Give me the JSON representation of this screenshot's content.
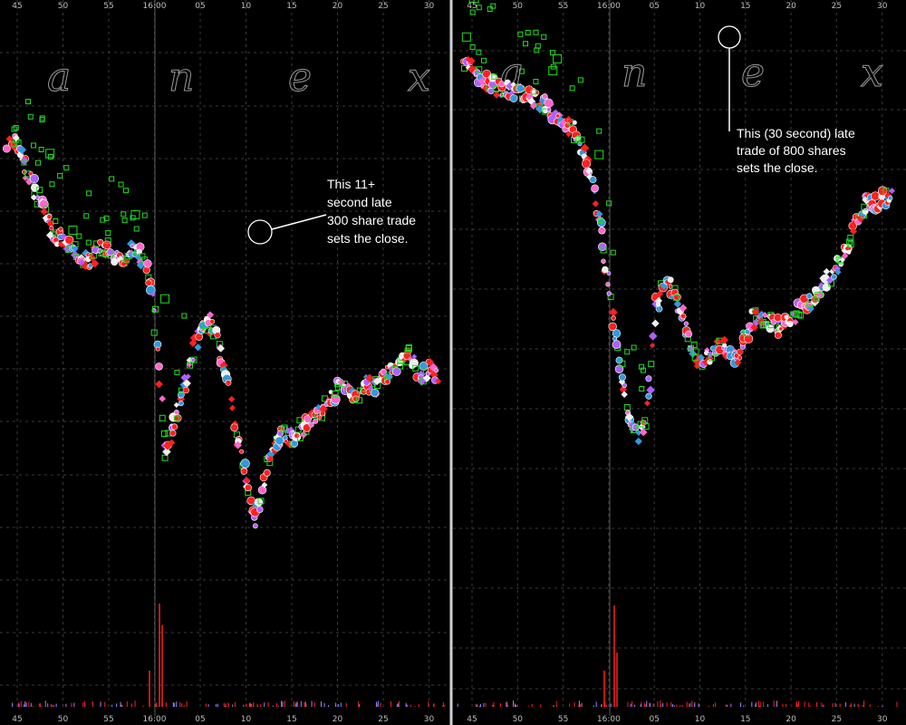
{
  "colors": {
    "background": "#000000",
    "grid": "#3a3a3a",
    "close_line": "#5a5a5a",
    "divider": "#d0d0d0",
    "trade_red": "#ff2020",
    "trade_pink": "#ff66cc",
    "trade_purple": "#b060ff",
    "trade_white": "#eeeeee",
    "quote_green": "#22dd22",
    "quote_blue": "#3399dd",
    "volume_red": "#ff2020",
    "annotation": "#ffffff"
  },
  "chart_data": [
    {
      "type": "scatter",
      "panel": "left",
      "x_ticks": [
        "45",
        "50",
        "55",
        "16:00",
        "05",
        "10",
        "15",
        "20",
        "25",
        "30"
      ],
      "watermark": [
        "a",
        "n",
        "e",
        "x"
      ],
      "grid": true,
      "annotation": {
        "lines": [
          "This 11+",
          "second late",
          "300 share trade",
          "sets the close."
        ]
      },
      "price_path_seconds_after_1600": [
        -16,
        -15,
        -14,
        -13,
        -12,
        -11,
        -10,
        -9,
        -8,
        -7,
        -6,
        -5,
        -4,
        -3,
        -2,
        -1,
        0,
        1,
        2,
        3,
        4,
        5,
        6,
        7,
        8,
        9,
        10,
        11,
        12,
        13,
        14,
        15,
        16,
        17,
        18,
        19,
        20,
        21,
        22,
        23,
        24,
        25,
        26,
        27,
        28,
        29,
        30,
        31
      ],
      "relative_price": [
        0.78,
        0.78,
        0.73,
        0.69,
        0.66,
        0.61,
        0.61,
        0.59,
        0.57,
        0.57,
        0.59,
        0.59,
        0.57,
        0.58,
        0.59,
        0.56,
        0.48,
        0.23,
        0.27,
        0.33,
        0.39,
        0.45,
        0.46,
        0.42,
        0.35,
        0.24,
        0.18,
        0.11,
        0.19,
        0.24,
        0.26,
        0.25,
        0.27,
        0.28,
        0.3,
        0.32,
        0.34,
        0.34,
        0.32,
        0.36,
        0.34,
        0.36,
        0.37,
        0.4,
        0.4,
        0.36,
        0.38,
        0.36
      ]
    },
    {
      "type": "scatter",
      "panel": "right",
      "x_ticks": [
        "45",
        "50",
        "55",
        "16:00",
        "05",
        "10",
        "15",
        "20",
        "25",
        "30"
      ],
      "watermark": [
        "a",
        "n",
        "e",
        "x"
      ],
      "grid": true,
      "annotation": {
        "lines": [
          "This (30 second) late",
          "trade of 800 shares",
          "sets the close."
        ]
      },
      "price_path_seconds_after_1600": [
        -16,
        -15,
        -14,
        -13,
        -12,
        -11,
        -10,
        -9,
        -8,
        -7,
        -6,
        -5,
        -4,
        -3,
        -2,
        -1,
        0,
        1,
        2,
        3,
        4,
        5,
        6,
        7,
        8,
        9,
        10,
        11,
        12,
        13,
        14,
        15,
        16,
        17,
        18,
        19,
        20,
        21,
        22,
        23,
        24,
        25,
        26,
        27,
        28,
        29,
        30,
        31
      ],
      "relative_price": [
        0.94,
        0.93,
        0.91,
        0.9,
        0.89,
        0.89,
        0.88,
        0.88,
        0.87,
        0.86,
        0.84,
        0.83,
        0.81,
        0.78,
        0.72,
        0.62,
        0.5,
        0.38,
        0.27,
        0.22,
        0.25,
        0.47,
        0.52,
        0.5,
        0.45,
        0.4,
        0.36,
        0.38,
        0.4,
        0.39,
        0.37,
        0.42,
        0.46,
        0.45,
        0.44,
        0.43,
        0.45,
        0.47,
        0.48,
        0.5,
        0.53,
        0.55,
        0.58,
        0.63,
        0.67,
        0.67,
        0.68,
        0.68
      ]
    }
  ]
}
